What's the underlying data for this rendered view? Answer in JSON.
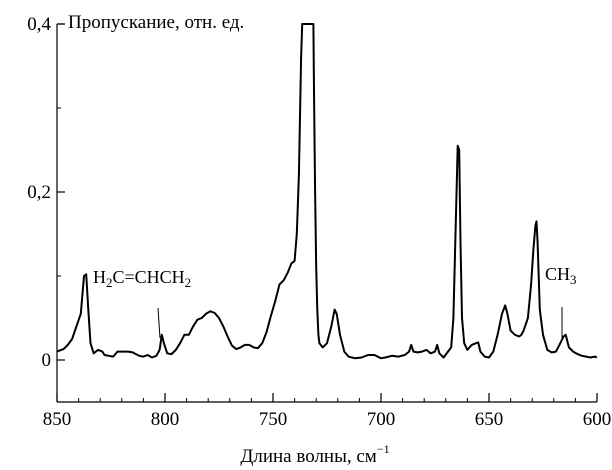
{
  "chart_data": {
    "type": "line",
    "ylabel": "Пропускание, отн. ед.",
    "xlabel": "Длина волны, см",
    "xlabel_superscript": "−1",
    "xlim": [
      850,
      600
    ],
    "ylim": [
      -0.05,
      0.4
    ],
    "x_ticks": [
      850,
      800,
      750,
      700,
      650,
      600
    ],
    "x_tick_labels": [
      "850",
      "800",
      "750",
      "700",
      "650",
      "600"
    ],
    "y_ticks": [
      0,
      0.2,
      0.4
    ],
    "y_tick_labels": [
      "0",
      "0,2",
      "0,4"
    ],
    "grid": false,
    "annotations": [
      {
        "text_parts": [
          "H",
          "2",
          "C=CHCH",
          "2"
        ],
        "sub": [
          false,
          true,
          false,
          true
        ],
        "x": 801,
        "y": 0.03
      },
      {
        "text_parts": [
          "CH",
          "3"
        ],
        "sub": [
          false,
          true
        ],
        "x": 615,
        "y": 0.03
      }
    ],
    "series": [
      {
        "x": [
          850,
          847,
          845,
          843,
          841,
          839,
          837.5,
          836.5,
          835.5,
          834.5,
          833,
          831,
          829,
          828,
          826,
          824,
          822,
          819,
          817,
          815,
          812,
          810,
          808,
          806,
          804,
          802.5,
          801.5,
          800.5,
          799,
          797,
          795,
          793,
          791,
          789,
          787,
          785,
          783,
          781,
          779,
          777,
          775,
          773,
          771,
          769,
          767,
          765,
          763,
          761,
          759,
          757,
          755,
          753,
          751,
          749,
          747,
          745,
          743,
          741.5,
          740,
          739,
          738,
          737.5,
          737,
          736.5,
          736.2,
          731.3,
          731,
          730.5,
          730,
          729.5,
          729,
          728.5,
          727,
          725,
          723,
          721.5,
          720.5,
          719,
          717,
          715,
          712,
          709,
          706,
          703,
          700,
          698,
          695,
          692,
          689,
          687,
          686,
          685,
          683,
          681,
          679,
          677,
          675,
          674,
          673,
          671,
          669,
          667.5,
          666.5,
          665.5,
          664.5,
          663.8,
          663.2,
          662.5,
          661.5,
          660,
          658,
          656,
          655,
          654,
          652,
          650,
          648,
          646,
          644,
          642.5,
          641.5,
          640,
          638,
          636,
          635,
          634,
          632,
          630.5,
          629.5,
          628.5,
          628,
          627.5,
          626.5,
          625,
          623,
          621,
          619,
          617,
          615.5,
          614.5,
          613,
          611,
          609,
          607,
          605,
          603,
          601,
          600
        ],
        "y": [
          0.01,
          0.013,
          0.018,
          0.025,
          0.04,
          0.055,
          0.1,
          0.102,
          0.06,
          0.02,
          0.008,
          0.012,
          0.01,
          0.006,
          0.005,
          0.004,
          0.01,
          0.01,
          0.01,
          0.009,
          0.005,
          0.004,
          0.006,
          0.003,
          0.005,
          0.012,
          0.03,
          0.02,
          0.008,
          0.007,
          0.012,
          0.02,
          0.03,
          0.03,
          0.04,
          0.048,
          0.05,
          0.055,
          0.058,
          0.056,
          0.05,
          0.04,
          0.028,
          0.017,
          0.013,
          0.015,
          0.018,
          0.018,
          0.015,
          0.014,
          0.02,
          0.033,
          0.052,
          0.07,
          0.09,
          0.095,
          0.105,
          0.115,
          0.118,
          0.15,
          0.22,
          0.29,
          0.36,
          0.4,
          0.42,
          0.42,
          0.32,
          0.2,
          0.11,
          0.06,
          0.03,
          0.02,
          0.015,
          0.02,
          0.04,
          0.06,
          0.055,
          0.03,
          0.01,
          0.004,
          0.002,
          0.003,
          0.006,
          0.006,
          0.002,
          0.003,
          0.005,
          0.004,
          0.006,
          0.01,
          0.018,
          0.01,
          0.009,
          0.01,
          0.012,
          0.008,
          0.01,
          0.018,
          0.008,
          0.003,
          0.01,
          0.015,
          0.05,
          0.15,
          0.255,
          0.25,
          0.14,
          0.05,
          0.02,
          0.012,
          0.018,
          0.02,
          0.021,
          0.01,
          0.004,
          0.003,
          0.01,
          0.03,
          0.055,
          0.065,
          0.055,
          0.035,
          0.03,
          0.028,
          0.03,
          0.035,
          0.05,
          0.09,
          0.13,
          0.16,
          0.165,
          0.14,
          0.06,
          0.03,
          0.012,
          0.009,
          0.01,
          0.02,
          0.028,
          0.03,
          0.015,
          0.01,
          0.007,
          0.005,
          0.004,
          0.003,
          0.004,
          0.003
        ]
      }
    ]
  }
}
